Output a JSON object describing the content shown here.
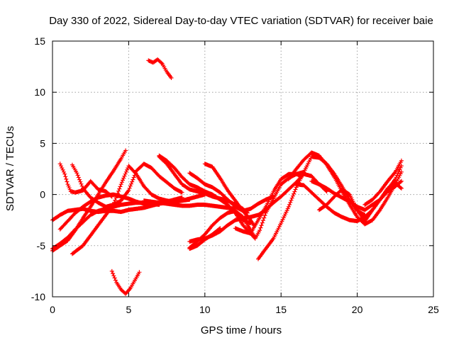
{
  "chart_data": {
    "type": "scatter",
    "title": "Day 330 of 2022, Sidereal Day-to-day VTEC variation (SDTVAR) for receiver baie",
    "xlabel": "GPS time / hours",
    "ylabel": "SDTVAR / TECUs",
    "xlim": [
      0,
      25
    ],
    "ylim": [
      -10,
      15
    ],
    "x_ticks": [
      0,
      5,
      10,
      15,
      20,
      25
    ],
    "y_ticks": [
      -10,
      -5,
      0,
      5,
      10,
      15
    ],
    "x_tick_labels": [
      "0",
      "5",
      "10",
      "15",
      "20",
      "25"
    ],
    "y_tick_labels": [
      "-10",
      "-5",
      "0",
      "5",
      "10",
      "15"
    ],
    "grid": true,
    "marker": "+",
    "color": "#ff0000",
    "series": [
      {
        "name": "track-1",
        "x": [
          0.0,
          0.5,
          1.0,
          1.5,
          2.0,
          2.5,
          3.0,
          3.5,
          4.0,
          4.5,
          5.0,
          5.5,
          6.0,
          6.5,
          7.0,
          7.5,
          8.0,
          8.5,
          9.0
        ],
        "y": [
          -2.5,
          -2.0,
          -1.6,
          -1.5,
          -1.4,
          -1.6,
          -1.7,
          -1.6,
          -1.6,
          -1.7,
          -1.5,
          -1.4,
          -1.3,
          -1.1,
          -0.9,
          -0.8,
          -0.7,
          -0.6,
          -0.5
        ]
      },
      {
        "name": "track-2",
        "x": [
          0.0,
          0.5,
          1.0,
          1.5,
          2.0,
          2.5,
          3.0,
          3.5,
          4.0,
          4.5,
          4.8
        ],
        "y": [
          -5.5,
          -5.0,
          -4.5,
          -3.5,
          -2.3,
          -1.2,
          0.0,
          1.2,
          2.3,
          3.5,
          4.3
        ]
      },
      {
        "name": "track-3",
        "x": [
          0.0,
          0.5,
          1.0,
          1.5,
          2.0,
          2.5,
          3.0,
          3.5,
          4.0,
          4.5,
          5.0,
          5.5,
          6.0,
          6.5,
          7.0
        ],
        "y": [
          -5.3,
          -4.8,
          -4.2,
          -3.4,
          -2.7,
          -2.0,
          -1.6,
          -1.4,
          -1.2,
          -1.0,
          -0.9,
          -0.8,
          -0.8,
          -0.9,
          -1.0
        ]
      },
      {
        "name": "track-4",
        "x": [
          0.5,
          1.0,
          1.5,
          2.0,
          2.5,
          3.0,
          3.5,
          4.0,
          4.5,
          5.0,
          5.5,
          6.0,
          6.5,
          7.0,
          7.5,
          8.0,
          8.5
        ],
        "y": [
          -3.4,
          -2.6,
          -1.8,
          -1.2,
          -0.7,
          -0.3,
          -0.1,
          0.0,
          -0.2,
          -0.4,
          -0.7,
          -0.9,
          -1.0,
          -0.9,
          -0.7,
          -0.5,
          -0.3
        ]
      },
      {
        "name": "track-5",
        "x": [
          0.5,
          0.8,
          1.0,
          1.2,
          1.5,
          2.0,
          2.5,
          3.0,
          3.5,
          3.9
        ],
        "y": [
          3.0,
          2.0,
          1.0,
          0.3,
          0.2,
          0.4,
          1.3,
          0.5,
          0.3,
          -0.2
        ]
      },
      {
        "name": "track-6",
        "x": [
          1.3,
          1.6,
          2.0,
          2.5,
          3.0,
          3.5,
          4.0,
          4.5,
          5.0,
          5.5,
          6.0,
          6.5,
          7.0,
          7.5,
          8.0,
          8.5
        ],
        "y": [
          2.9,
          2.1,
          0.6,
          -0.3,
          -0.8,
          -1.2,
          -1.0,
          -0.6,
          0.4,
          2.3,
          3.0,
          2.6,
          1.8,
          1.2,
          0.6,
          0.2
        ]
      },
      {
        "name": "track-7",
        "x": [
          1.3,
          2.0,
          2.5,
          3.0,
          3.5,
          4.0,
          4.5,
          5.0,
          5.5,
          6.0,
          6.5,
          7.0,
          7.5,
          8.0,
          8.5,
          9.0,
          9.5,
          10.0
        ],
        "y": [
          -5.8,
          -5.0,
          -4.0,
          -3.0,
          -2.0,
          -1.0,
          1.0,
          2.8,
          2.0,
          0.8,
          0.0,
          -0.4,
          -0.6,
          -0.7,
          -0.6,
          -0.4,
          -0.2,
          0.0
        ]
      },
      {
        "name": "track-8",
        "x": [
          3.9,
          4.2,
          4.5,
          4.8,
          5.1,
          5.4,
          5.7
        ],
        "y": [
          -7.5,
          -8.6,
          -9.3,
          -9.7,
          -9.2,
          -8.4,
          -7.6
        ]
      },
      {
        "name": "track-9",
        "x": [
          6.3,
          6.6,
          6.9,
          7.2,
          7.5,
          7.8
        ],
        "y": [
          13.1,
          12.9,
          13.2,
          12.8,
          12.0,
          11.4
        ]
      },
      {
        "name": "track-10",
        "x": [
          7.0,
          7.5,
          8.0,
          8.5,
          9.0,
          9.5,
          10.0,
          10.5,
          11.0,
          11.5,
          12.0,
          12.5,
          13.0
        ],
        "y": [
          3.8,
          3.3,
          2.6,
          1.7,
          1.0,
          0.7,
          0.3,
          0.0,
          -0.5,
          -1.0,
          -1.8,
          -2.5,
          -2.8
        ]
      },
      {
        "name": "track-11",
        "x": [
          7.0,
          7.5,
          8.0,
          8.5,
          9.0,
          9.5,
          10.0,
          10.5,
          11.0,
          11.5,
          12.0,
          12.5,
          12.8
        ],
        "y": [
          3.7,
          3.0,
          2.0,
          1.0,
          0.5,
          0.3,
          0.1,
          -0.2,
          -0.4,
          -0.6,
          -1.0,
          -1.4,
          -1.8
        ]
      },
      {
        "name": "track-12",
        "x": [
          6.0,
          6.5,
          7.0,
          7.5,
          8.0,
          8.5,
          9.0,
          9.5,
          10.0,
          10.5,
          11.0,
          11.5,
          12.0
        ],
        "y": [
          -0.6,
          -0.7,
          -0.8,
          -0.9,
          -1.0,
          -1.1,
          -1.1,
          -1.0,
          -1.0,
          -1.1,
          -1.2,
          -1.3,
          -1.4
        ]
      },
      {
        "name": "track-13",
        "x": [
          9.0,
          9.5,
          10.0,
          10.5,
          11.0,
          11.5,
          12.0,
          12.5,
          13.0,
          13.5,
          14.0,
          14.5
        ],
        "y": [
          2.1,
          1.6,
          1.0,
          0.7,
          0.2,
          -0.5,
          -1.2,
          -1.6,
          -1.4,
          -0.9,
          -0.5,
          -0.2
        ]
      },
      {
        "name": "track-14",
        "x": [
          10.0,
          10.5,
          11.0,
          11.5,
          12.0,
          12.5,
          13.0,
          13.2
        ],
        "y": [
          3.0,
          2.7,
          1.6,
          0.4,
          -0.6,
          -1.6,
          -2.5,
          -3.0
        ]
      },
      {
        "name": "track-15",
        "x": [
          9.0,
          9.5,
          10.0,
          10.5,
          11.0,
          11.5,
          12.0,
          12.5,
          13.0,
          13.5,
          14.0,
          14.5,
          15.0,
          15.5,
          16.0,
          16.5,
          17.0,
          17.5,
          18.0
        ],
        "y": [
          -4.6,
          -4.4,
          -4.3,
          -4.0,
          -3.6,
          -3.0,
          -2.5,
          -2.3,
          -2.2,
          -2.0,
          -1.5,
          -0.8,
          -0.2,
          0.5,
          1.2,
          2.0,
          1.8,
          1.0,
          0.3
        ]
      },
      {
        "name": "track-16",
        "x": [
          9.0,
          9.5,
          10.0,
          10.5,
          11.0,
          11.5,
          12.0,
          12.5,
          12.8,
          13.0,
          13.3
        ],
        "y": [
          -5.2,
          -4.6,
          -3.9,
          -3.0,
          -2.3,
          -1.8,
          -1.6,
          -2.2,
          -3.0,
          -3.5,
          -4.2
        ]
      },
      {
        "name": "track-17",
        "x": [
          9.0,
          9.5,
          10.0,
          10.5,
          11.0
        ],
        "y": [
          -5.3,
          -5.0,
          -4.4,
          -3.9,
          -3.3
        ]
      },
      {
        "name": "track-18",
        "x": [
          11.5,
          12.0,
          12.5,
          13.0,
          13.3,
          13.6,
          14.0,
          14.5,
          15.0,
          15.5,
          16.0,
          16.5
        ],
        "y": [
          -1.2,
          -1.8,
          -3.0,
          -3.8,
          -4.3,
          -3.5,
          -1.8,
          -0.4,
          1.0,
          1.6,
          2.0,
          2.2
        ]
      },
      {
        "name": "track-19",
        "x": [
          12.0,
          12.5,
          13.0,
          13.5,
          14.0,
          14.5,
          15.0,
          15.5,
          16.0,
          16.3
        ],
        "y": [
          -3.3,
          -3.6,
          -3.8,
          -2.5,
          -1.2,
          0.3,
          1.5,
          2.0,
          2.0,
          1.8
        ]
      },
      {
        "name": "track-20",
        "x": [
          13.5,
          14.0,
          14.5,
          15.0,
          15.5,
          16.0,
          16.5,
          17.0,
          17.5,
          18.0,
          18.5,
          19.0,
          19.5,
          20.0,
          20.5
        ],
        "y": [
          -6.3,
          -5.3,
          -4.3,
          -2.8,
          -1.2,
          0.7,
          2.2,
          3.7,
          3.6,
          3.0,
          2.0,
          0.8,
          -0.5,
          -1.6,
          -2.0
        ]
      },
      {
        "name": "track-21",
        "x": [
          15.5,
          16.0,
          16.5,
          17.0,
          17.5,
          18.0,
          18.5,
          19.0,
          19.5,
          20.0,
          20.5,
          21.0,
          21.5,
          22.0,
          22.5,
          22.9
        ],
        "y": [
          1.5,
          2.5,
          3.4,
          4.1,
          3.8,
          2.9,
          1.7,
          0.3,
          -1.0,
          -2.2,
          -2.9,
          -2.5,
          -1.5,
          -0.3,
          1.0,
          2.2
        ]
      },
      {
        "name": "track-22",
        "x": [
          16.0,
          16.5,
          17.0,
          17.5,
          18.0,
          18.5,
          19.0,
          19.5,
          20.0,
          20.5,
          21.0,
          21.5,
          22.0,
          22.5,
          22.9
        ],
        "y": [
          1.0,
          0.9,
          0.2,
          -0.5,
          -1.2,
          -1.8,
          -2.2,
          -2.5,
          -2.6,
          -2.2,
          -1.5,
          -0.5,
          0.5,
          1.5,
          2.8
        ]
      },
      {
        "name": "track-23",
        "x": [
          17.0,
          17.5,
          18.0,
          18.5,
          19.0,
          19.5,
          20.0,
          20.5,
          21.0,
          21.5,
          22.0,
          22.5,
          22.9
        ],
        "y": [
          1.3,
          1.0,
          0.6,
          0.1,
          -0.3,
          -0.7,
          -1.2,
          -1.5,
          -1.0,
          -0.5,
          0.3,
          0.8,
          1.3
        ]
      },
      {
        "name": "track-24",
        "x": [
          17.5,
          18.0,
          18.5,
          19.0,
          19.5,
          20.0,
          20.5,
          21.0,
          21.5,
          22.0,
          22.5,
          22.9
        ],
        "y": [
          -1.5,
          -1.0,
          -0.2,
          0.5,
          0.0,
          -1.5,
          -2.6,
          -1.5,
          -0.5,
          0.6,
          1.1,
          0.6
        ]
      },
      {
        "name": "track-25",
        "x": [
          20.5,
          21.0,
          21.5,
          22.0,
          22.5,
          22.9
        ],
        "y": [
          -1.0,
          -0.5,
          0.3,
          1.3,
          2.2,
          3.3
        ]
      }
    ]
  }
}
